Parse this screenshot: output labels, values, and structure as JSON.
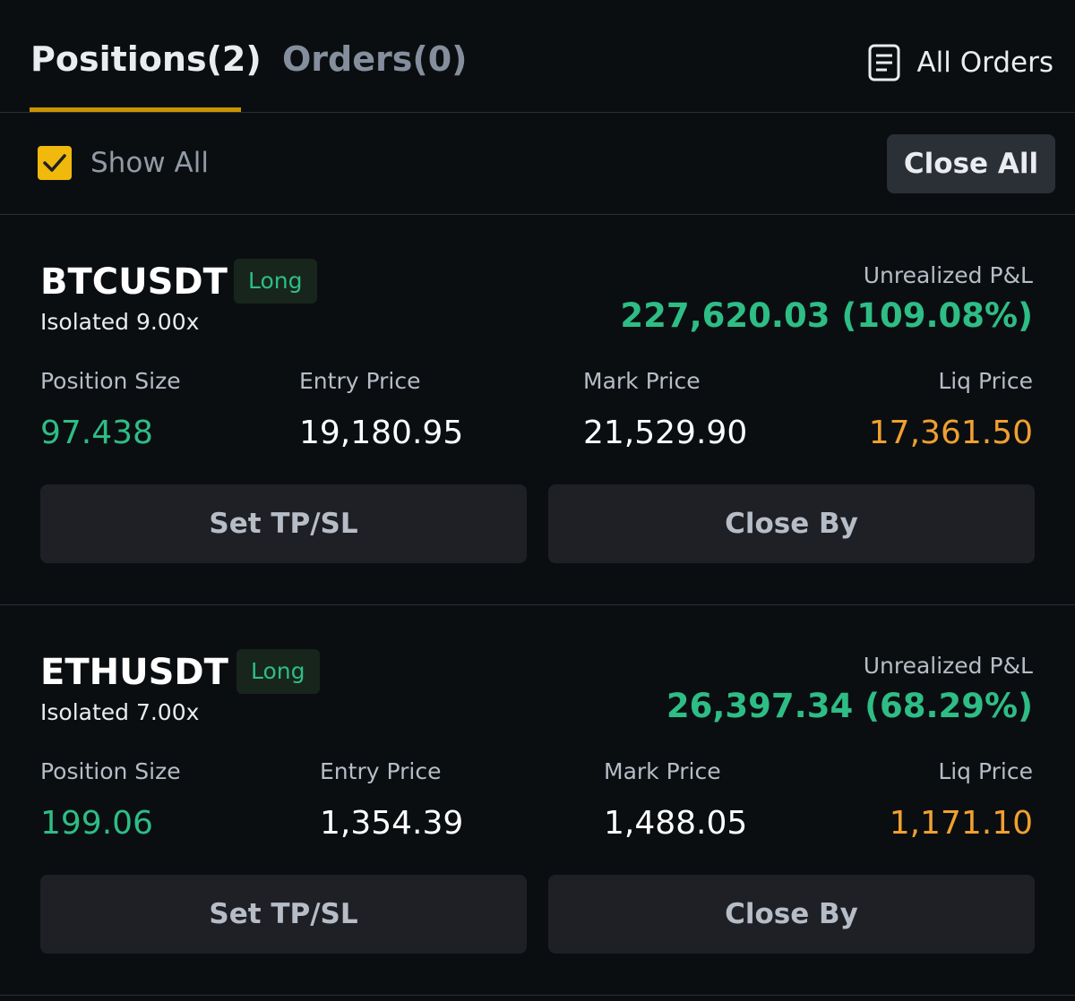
{
  "tabs": {
    "positions_label": "Positions(2)",
    "orders_label": "Orders(0)"
  },
  "header": {
    "all_orders_label": "All Orders",
    "all_orders_icon": "document-list-icon"
  },
  "filter": {
    "show_all_label": "Show All",
    "show_all_checked": true,
    "close_all_label": "Close All"
  },
  "positions": [
    {
      "symbol": "BTCUSDT",
      "side": "Long",
      "leverage": "Isolated 9.00x",
      "pnl_label": "Unrealized P&L",
      "pnl_value": "227,620.03 (109.08%)",
      "size_label": "Position Size",
      "size_value": "97.438",
      "entry_label": "Entry Price",
      "entry_value": "19,180.95",
      "mark_label": "Mark Price",
      "mark_value": "21,529.90",
      "liq_label": "Liq Price",
      "liq_value": "17,361.50",
      "tpsl_label": "Set TP/SL",
      "close_by_label": "Close By"
    },
    {
      "symbol": "ETHUSDT",
      "side": "Long",
      "leverage": "Isolated 7.00x",
      "pnl_label": "Unrealized P&L",
      "pnl_value": "26,397.34 (68.29%)",
      "size_label": "Position Size",
      "size_value": "199.06",
      "entry_label": "Entry Price",
      "entry_value": "1,354.39",
      "mark_label": "Mark Price",
      "mark_value": "1,488.05",
      "liq_label": "Liq Price",
      "liq_value": "1,171.10",
      "tpsl_label": "Set TP/SL",
      "close_by_label": "Close By"
    }
  ],
  "colors": {
    "background": "#0b0e11",
    "accent": "#f0b90b",
    "positive": "#2ebd85",
    "liquidation": "#f0a030"
  }
}
